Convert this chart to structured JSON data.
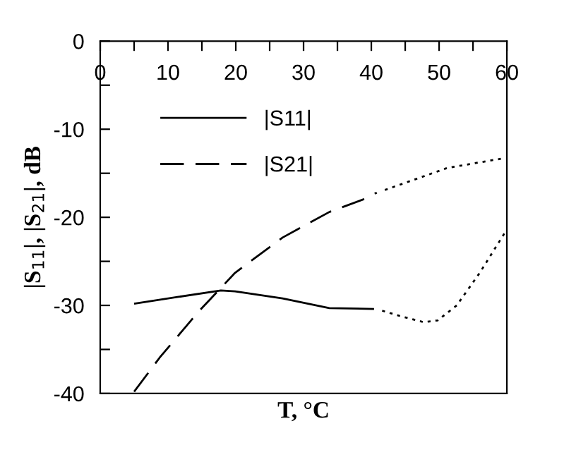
{
  "chart_data": {
    "type": "line",
    "xlabel": "T, °C",
    "ylabel": "|S$_{11}$|, |S$_{21}$|, dB",
    "xlim": [
      0,
      60
    ],
    "ylim": [
      -40,
      0
    ],
    "xticks": [
      0,
      {
        "value": 5,
        "label": null
      },
      10,
      {
        "value": 15,
        "label": null
      },
      20,
      {
        "value": 25,
        "label": null
      },
      30,
      {
        "value": 35,
        "label": null
      },
      40,
      {
        "value": 45,
        "label": null
      },
      50,
      {
        "value": 55,
        "label": null
      },
      60
    ],
    "yticks": [
      -40,
      {
        "value": -35,
        "label": null
      },
      -30,
      {
        "value": -25,
        "label": null
      },
      -20,
      {
        "value": -15,
        "label": null
      },
      -10,
      {
        "value": -5,
        "label": null
      },
      0
    ],
    "grid": false,
    "legend": "top left",
    "marker": "none",
    "series": [
      {
        "name": "|S11|",
        "color": "#000000",
        "line_style": "solid",
        "x": [
          5.0,
          17.8,
          19.9,
          26.9,
          33.8,
          40.4
        ],
        "values": [
          -29.8,
          -28.3,
          -28.4,
          -29.2,
          -30.3,
          -30.4
        ]
      },
      {
        "color": "#000000",
        "line_style": "dotted",
        "x": [
          41.6,
          44.2,
          47.7,
          49.8,
          52.6,
          56.0,
          59.9
        ],
        "values": [
          -30.6,
          -31.2,
          -31.9,
          -31.7,
          -30.0,
          -26.3,
          -21.5
        ]
      },
      {
        "name": "|S21|",
        "color": "#000000",
        "line_style": "dashed",
        "x": [
          5.0,
          8.8,
          14.4,
          19.9,
          26.9,
          33.8,
          38.7,
          40.8
        ],
        "values": [
          -39.8,
          -35.9,
          -30.8,
          -26.3,
          -22.3,
          -19.4,
          -18.0,
          -17.2
        ]
      },
      {
        "color": "#000000",
        "line_style": "dotted",
        "x": [
          42.0,
          51.2,
          59.5
        ],
        "values": [
          -16.9,
          -14.4,
          -13.3
        ]
      }
    ]
  }
}
